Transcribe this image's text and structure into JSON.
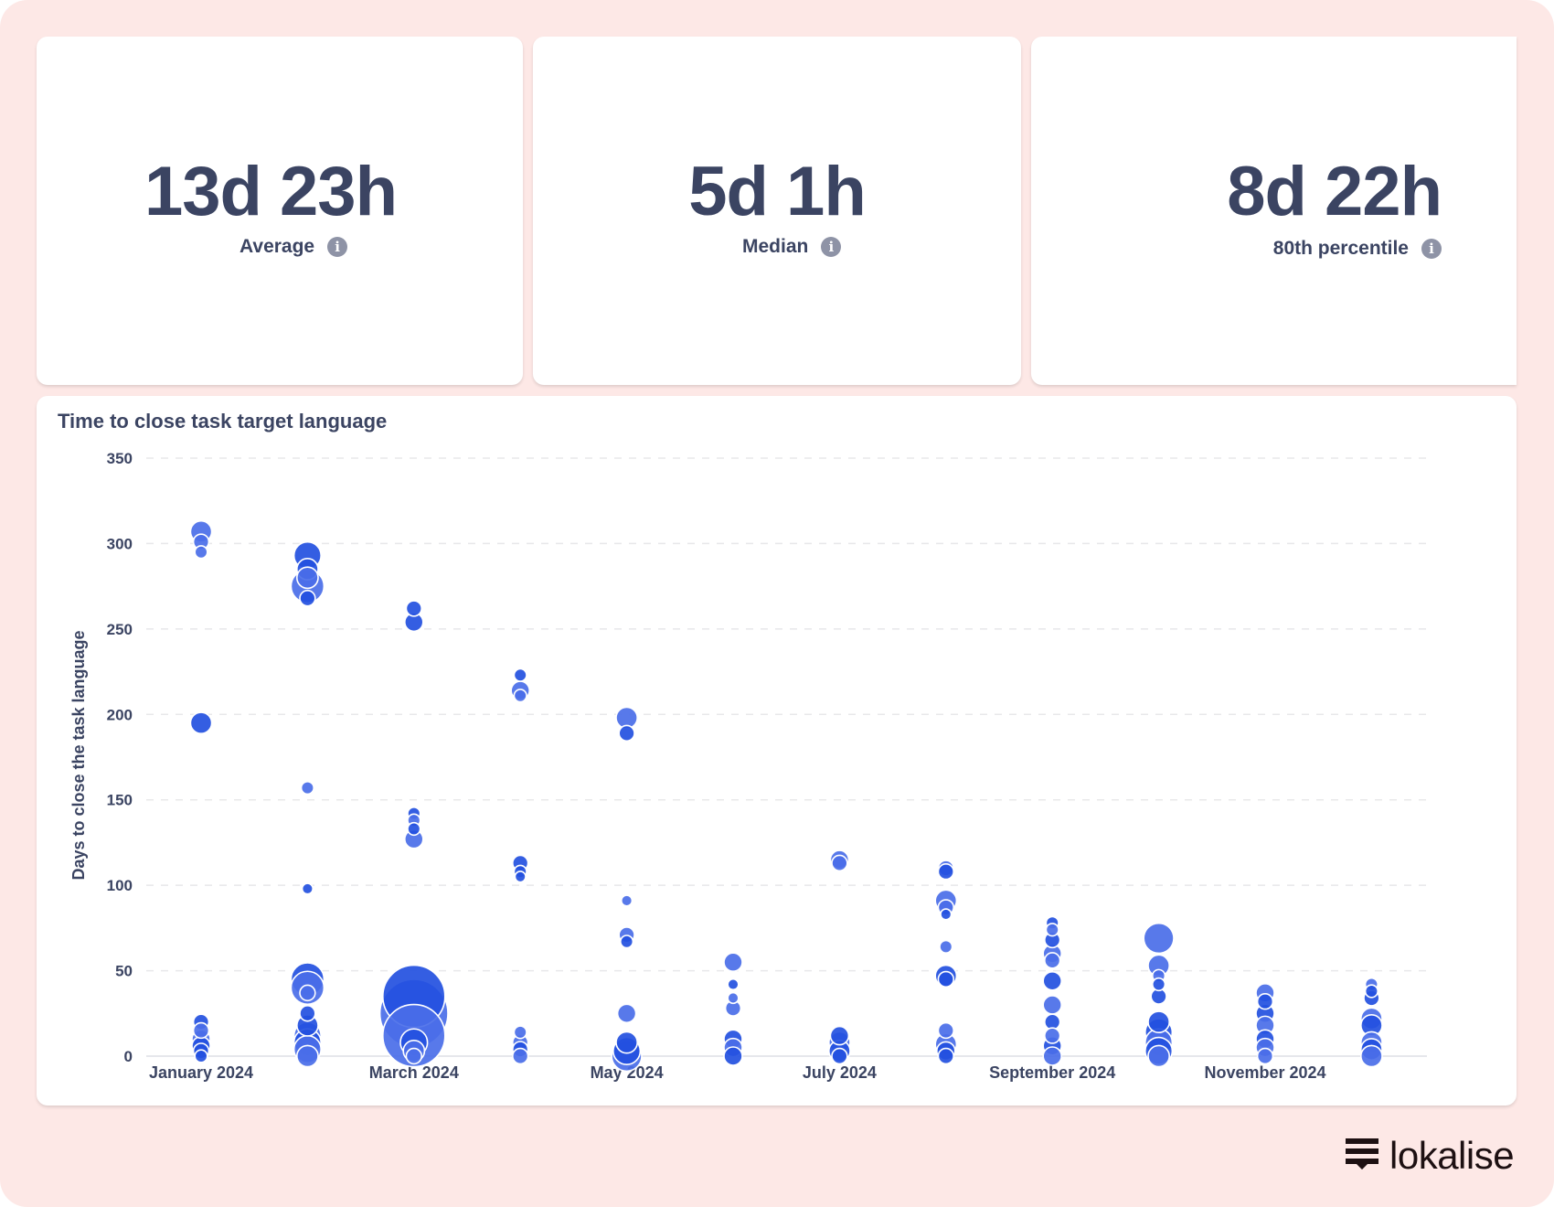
{
  "stats": [
    {
      "value": "13d 23h",
      "label": "Average",
      "icon": "info-icon"
    },
    {
      "value": "5d 1h",
      "label": "Median",
      "icon": "info-icon"
    },
    {
      "value": "8d 22h",
      "label": "80th percentile",
      "icon": "info-icon"
    }
  ],
  "brand": {
    "name": "lokalise"
  },
  "colors": {
    "background": "#fde8e6",
    "bubble": "#2552e2",
    "text": "#3b4462"
  },
  "chart_data": {
    "type": "scatter",
    "title": "Time to close task target language",
    "xlabel": "",
    "ylabel": "Days to close the task language",
    "ylim": [
      0,
      350
    ],
    "yticks": [
      0,
      50,
      100,
      150,
      200,
      250,
      300,
      350
    ],
    "grid": true,
    "months": [
      "Jan 2024",
      "Feb 2024",
      "Mar 2024",
      "Apr 2024",
      "May 2024",
      "Jun 2024",
      "Jul 2024",
      "Aug 2024",
      "Sep 2024",
      "Oct 2024",
      "Nov 2024",
      "Dec 2024"
    ],
    "xtick_labels": [
      {
        "month_index": 0,
        "label": "January 2024"
      },
      {
        "month_index": 2,
        "label": "March 2024"
      },
      {
        "month_index": 4,
        "label": "May 2024"
      },
      {
        "month_index": 6,
        "label": "July 2024"
      },
      {
        "month_index": 8,
        "label": "September 2024"
      },
      {
        "month_index": 10,
        "label": "November 2024"
      }
    ],
    "series": [
      {
        "month_index": 0,
        "points": [
          [
            307,
            3
          ],
          [
            301,
            2
          ],
          [
            295,
            1.5
          ],
          [
            195,
            3
          ],
          [
            20,
            2
          ],
          [
            15,
            2
          ],
          [
            10,
            2.5
          ],
          [
            6,
            2.5
          ],
          [
            3,
            2
          ],
          [
            0,
            1.5
          ]
        ]
      },
      {
        "month_index": 1,
        "points": [
          [
            293,
            4
          ],
          [
            285,
            3
          ],
          [
            280,
            3
          ],
          [
            275,
            5
          ],
          [
            268,
            2
          ],
          [
            157,
            1.5
          ],
          [
            98,
            1.2
          ],
          [
            45,
            5
          ],
          [
            40,
            5
          ],
          [
            37,
            2
          ],
          [
            25,
            2
          ],
          [
            18,
            3
          ],
          [
            12,
            4
          ],
          [
            8,
            4
          ],
          [
            4,
            4
          ],
          [
            0,
            3
          ]
        ]
      },
      {
        "month_index": 2,
        "points": [
          [
            262,
            2
          ],
          [
            254,
            2.5
          ],
          [
            142,
            1.5
          ],
          [
            138,
            1.5
          ],
          [
            133,
            1.5
          ],
          [
            127,
            2.5
          ],
          [
            35,
            10
          ],
          [
            25,
            11
          ],
          [
            12,
            10
          ],
          [
            8,
            4
          ],
          [
            3,
            3
          ],
          [
            0,
            2
          ]
        ]
      },
      {
        "month_index": 3,
        "points": [
          [
            223,
            1.5
          ],
          [
            214,
            2.5
          ],
          [
            211,
            1.5
          ],
          [
            113,
            2
          ],
          [
            108,
            1.5
          ],
          [
            105,
            1.2
          ],
          [
            14,
            1.5
          ],
          [
            8,
            2
          ],
          [
            4,
            2
          ],
          [
            0,
            2
          ]
        ]
      },
      {
        "month_index": 4,
        "points": [
          [
            198,
            3
          ],
          [
            189,
            2
          ],
          [
            91,
            1.2
          ],
          [
            71,
            2
          ],
          [
            67,
            1.5
          ],
          [
            25,
            2.5
          ],
          [
            8,
            3
          ],
          [
            3,
            4
          ],
          [
            0,
            4.5
          ]
        ]
      },
      {
        "month_index": 5,
        "points": [
          [
            55,
            2.5
          ],
          [
            42,
            1.2
          ],
          [
            34,
            1.2
          ],
          [
            28,
            2
          ],
          [
            10,
            2.5
          ],
          [
            5,
            2.5
          ],
          [
            0,
            2.5
          ]
        ]
      },
      {
        "month_index": 6,
        "points": [
          [
            115,
            2.5
          ],
          [
            113,
            2
          ],
          [
            12,
            2.5
          ],
          [
            8,
            3
          ],
          [
            3,
            3
          ],
          [
            0,
            2
          ]
        ]
      },
      {
        "month_index": 7,
        "points": [
          [
            110,
            2
          ],
          [
            108,
            2
          ],
          [
            91,
            3
          ],
          [
            87,
            2
          ],
          [
            83,
            1.2
          ],
          [
            64,
            1.5
          ],
          [
            47,
            3
          ],
          [
            45,
            2
          ],
          [
            15,
            2
          ],
          [
            7,
            3
          ],
          [
            3,
            2.5
          ],
          [
            0,
            2
          ]
        ]
      },
      {
        "month_index": 8,
        "points": [
          [
            78,
            1.5
          ],
          [
            74,
            1.5
          ],
          [
            68,
            2
          ],
          [
            60,
            2.5
          ],
          [
            56,
            2
          ],
          [
            44,
            2.5
          ],
          [
            30,
            2.5
          ],
          [
            20,
            2
          ],
          [
            12,
            2
          ],
          [
            6,
            2.5
          ],
          [
            0,
            2.5
          ]
        ]
      },
      {
        "month_index": 9,
        "points": [
          [
            69,
            4.5
          ],
          [
            53,
            3
          ],
          [
            47,
            1.5
          ],
          [
            42,
            1.5
          ],
          [
            35,
            2
          ],
          [
            20,
            3
          ],
          [
            14,
            4
          ],
          [
            8,
            4
          ],
          [
            3,
            4
          ],
          [
            0,
            3
          ]
        ]
      },
      {
        "month_index": 10,
        "points": [
          [
            37,
            2.5
          ],
          [
            32,
            2
          ],
          [
            25,
            2.5
          ],
          [
            18,
            2.5
          ],
          [
            10,
            2.5
          ],
          [
            5,
            2.5
          ],
          [
            0,
            2
          ]
        ]
      },
      {
        "month_index": 11,
        "points": [
          [
            42,
            1.5
          ],
          [
            38,
            1.5
          ],
          [
            34,
            2
          ],
          [
            22,
            3
          ],
          [
            18,
            3
          ],
          [
            8,
            3
          ],
          [
            4,
            3
          ],
          [
            0,
            3
          ]
        ]
      }
    ]
  }
}
